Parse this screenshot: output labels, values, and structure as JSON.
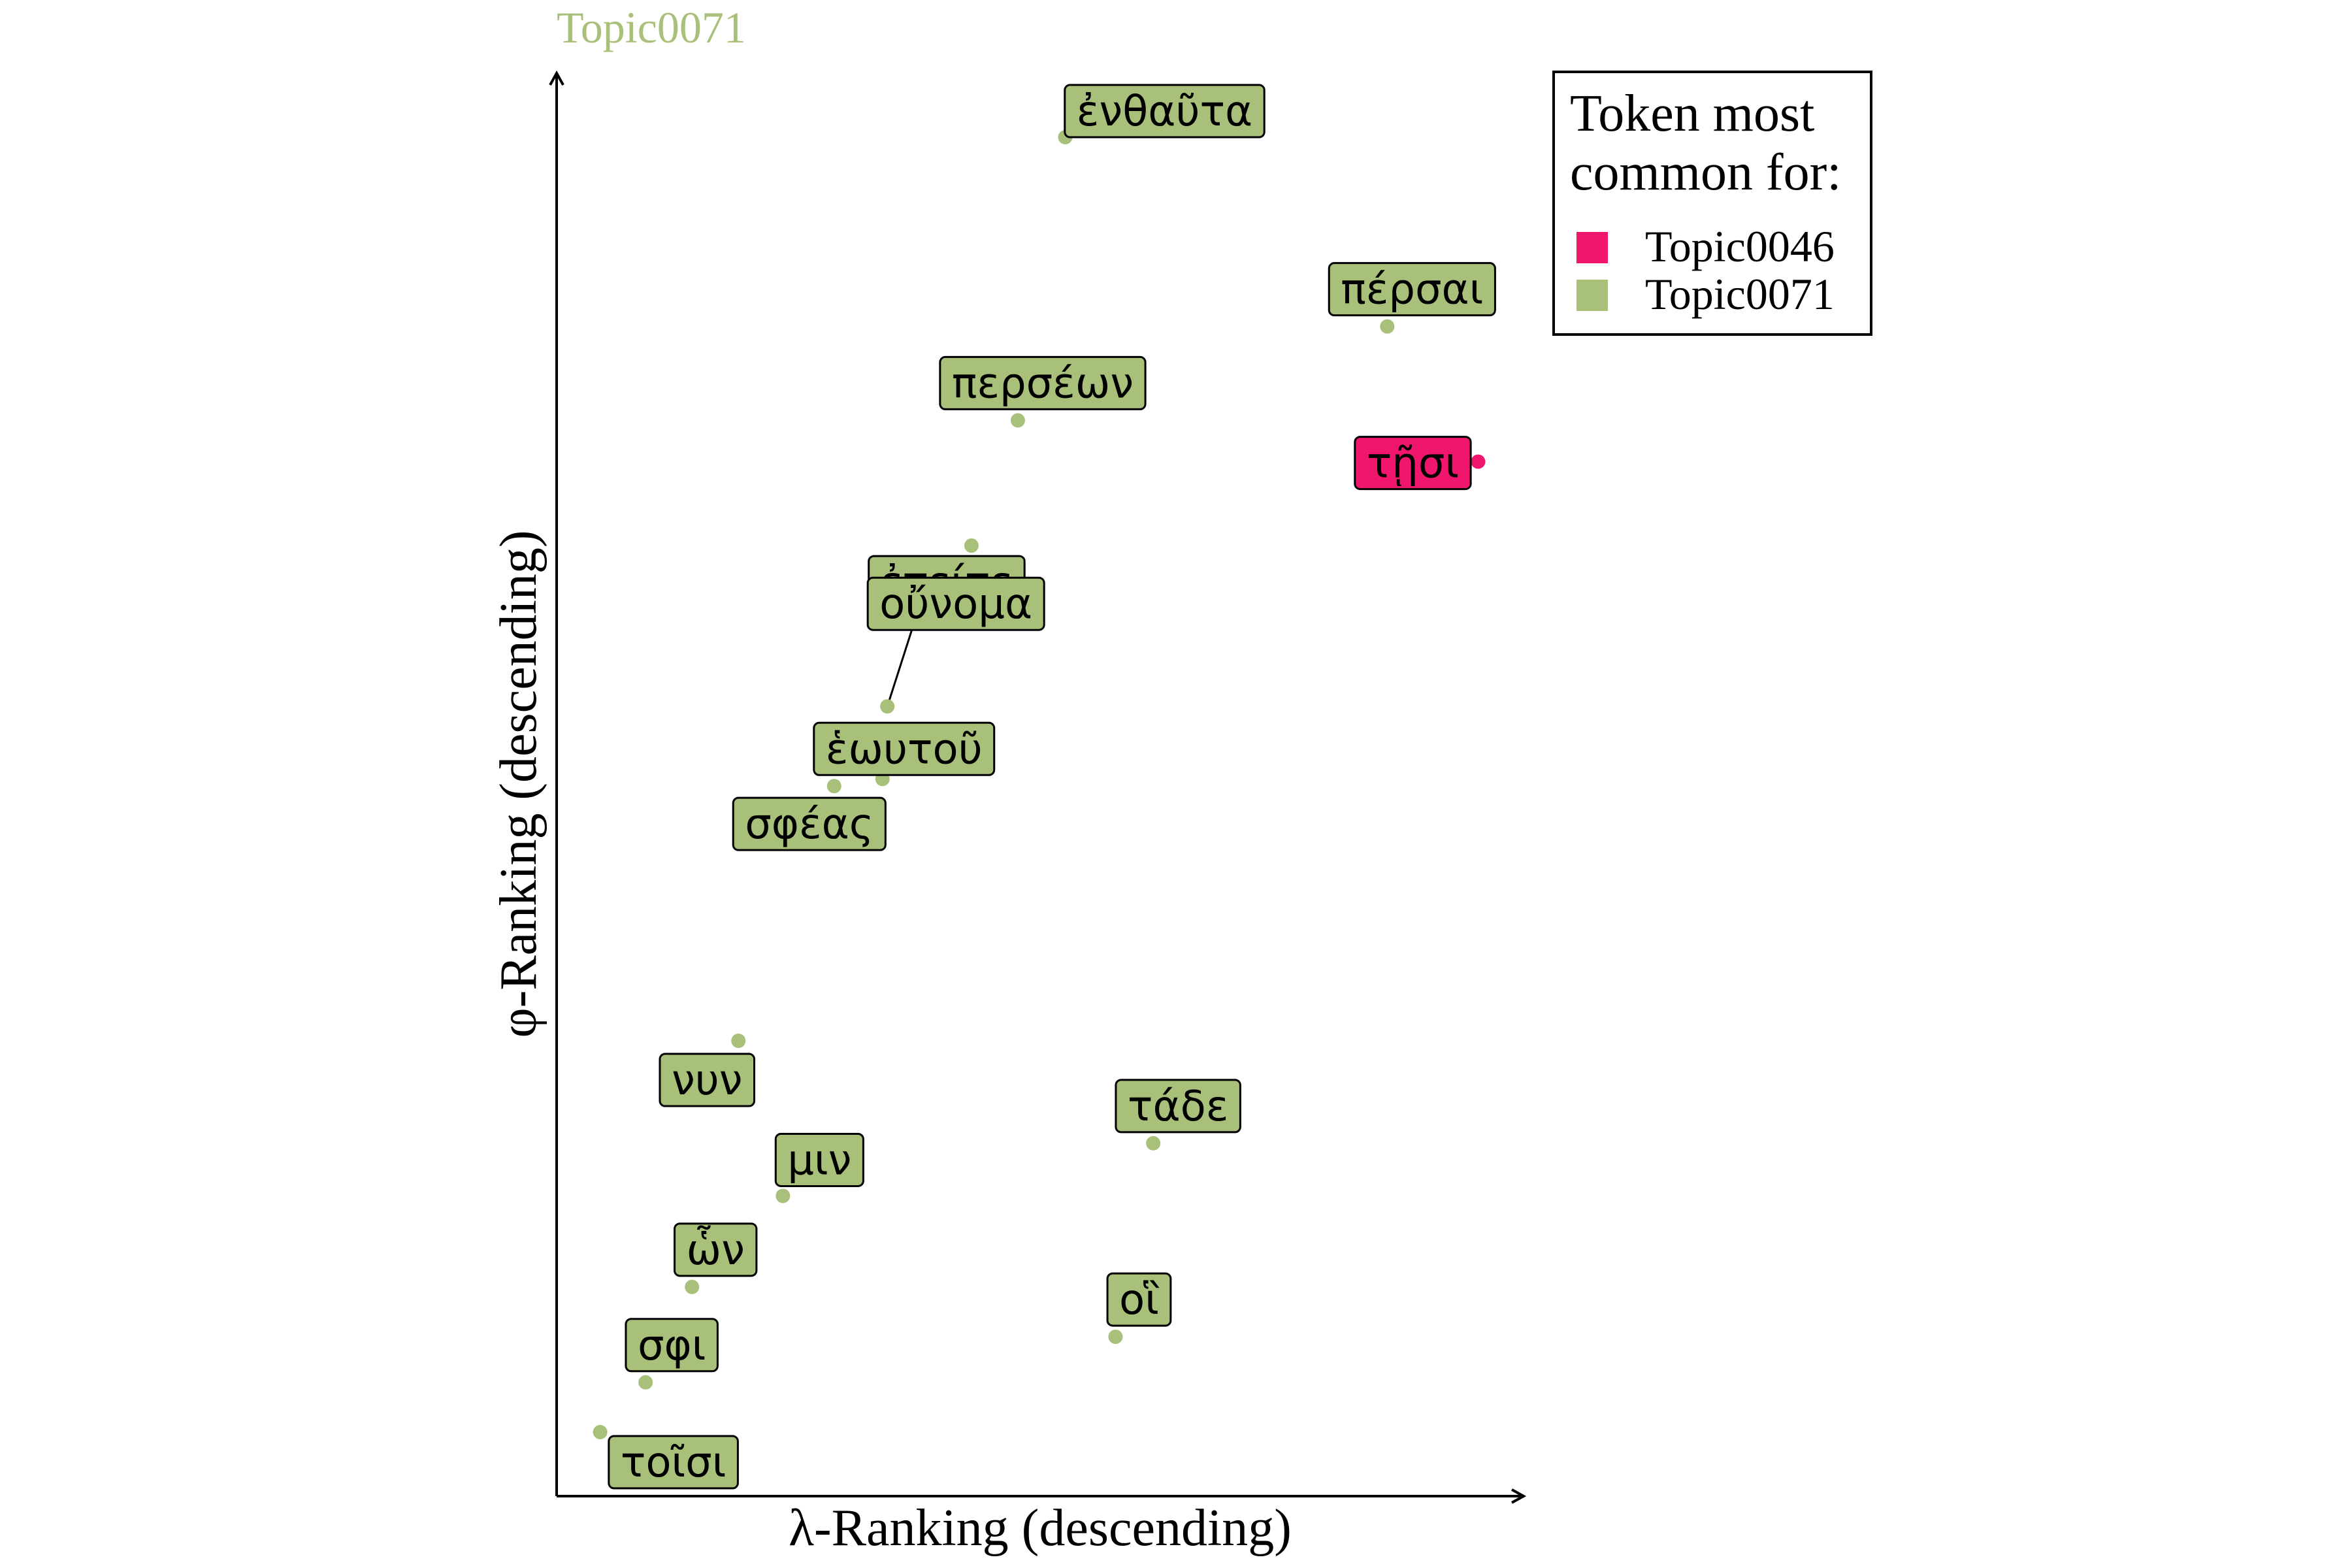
{
  "chart_data": {
    "type": "scatter",
    "title": "Topic0071",
    "xlabel": "λ-Ranking (descending)",
    "ylabel": "φ-Ranking (descending)",
    "grid": false,
    "legend": {
      "title_lines": [
        "Token most",
        "common for:"
      ],
      "position": "top-right",
      "entries": [
        {
          "name": "Topic0046",
          "color": "#f0166e"
        },
        {
          "name": "Topic0071",
          "color": "#a8c07a"
        }
      ]
    },
    "xlim": [
      0,
      100
    ],
    "ylim": [
      0,
      100
    ],
    "points": [
      {
        "token": "ἐνθαῦτα",
        "x": 52.6,
        "y": 95.5,
        "group": "Topic0071"
      },
      {
        "token": "πέρσαι",
        "x": 85.9,
        "y": 82.2,
        "group": "Topic0071"
      },
      {
        "token": "περσέων",
        "x": 47.7,
        "y": 75.6,
        "group": "Topic0071"
      },
      {
        "token": "τῇσι",
        "x": 95.3,
        "y": 72.7,
        "group": "Topic0046"
      },
      {
        "token": "ἐπείτε",
        "x": 42.9,
        "y": 66.8,
        "group": "Topic0071"
      },
      {
        "token": "οὔνομα",
        "x": 34.2,
        "y": 55.5,
        "group": "Topic0071"
      },
      {
        "token": "ἑωυτοῦ",
        "x": 33.7,
        "y": 50.4,
        "group": "Topic0071"
      },
      {
        "token": "σφέας",
        "x": 28.7,
        "y": 49.9,
        "group": "Topic0071"
      },
      {
        "token": "νυν",
        "x": 18.8,
        "y": 32.0,
        "group": "Topic0071"
      },
      {
        "token": "τάδε",
        "x": 61.7,
        "y": 24.8,
        "group": "Topic0071"
      },
      {
        "token": "μιν",
        "x": 23.4,
        "y": 21.1,
        "group": "Topic0071"
      },
      {
        "token": "ὧν",
        "x": 14.0,
        "y": 14.7,
        "group": "Topic0071"
      },
      {
        "token": "οἳ",
        "x": 57.8,
        "y": 11.2,
        "group": "Topic0071"
      },
      {
        "token": "σφι",
        "x": 9.2,
        "y": 8.0,
        "group": "Topic0071"
      },
      {
        "token": "τοῖσι",
        "x": 4.5,
        "y": 4.5,
        "group": "Topic0071"
      }
    ]
  },
  "colors": {
    "title": "#a8c07a",
    "axis": "#000000"
  }
}
